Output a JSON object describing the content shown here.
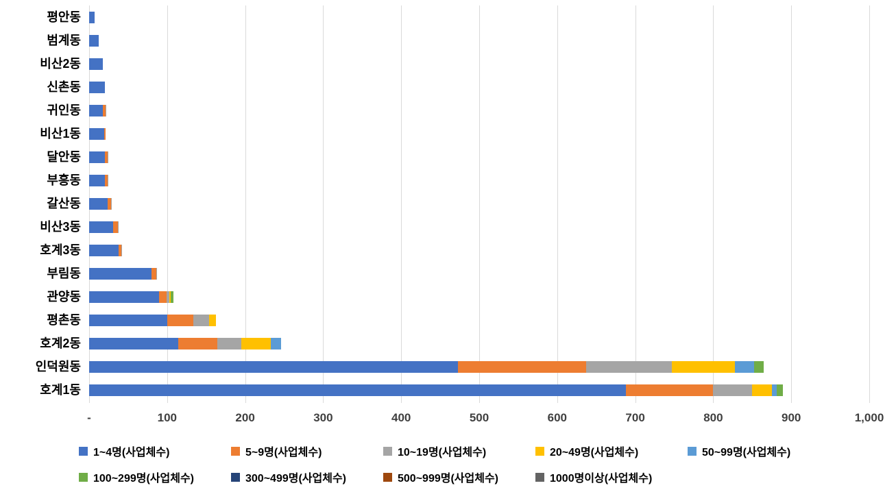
{
  "chart_data": {
    "type": "bar",
    "orientation": "horizontal",
    "stacked": true,
    "title": "",
    "xlabel": "",
    "ylabel": "",
    "xlim": [
      0,
      1000
    ],
    "grid": true,
    "legend_position": "bottom",
    "x_ticks": [
      "-",
      "100",
      "200",
      "300",
      "400",
      "500",
      "600",
      "700",
      "800",
      "900",
      "1,000"
    ],
    "categories": [
      "평안동",
      "범계동",
      "비산2동",
      "신촌동",
      "귀인동",
      "비산1동",
      "달안동",
      "부흥동",
      "갈산동",
      "비산3동",
      "호계3동",
      "부림동",
      "관양동",
      "평촌동",
      "호계2동",
      "인덕원동",
      "호계1동"
    ],
    "series": [
      {
        "name": "1~4명(사업체수)",
        "color": "#4472C4",
        "values": [
          7,
          12,
          18,
          20,
          18,
          19,
          20,
          20,
          24,
          31,
          38,
          80,
          90,
          100,
          114,
          473,
          688
        ]
      },
      {
        "name": "5~9명(사업체수)",
        "color": "#ED7D31",
        "values": [
          0,
          0,
          0,
          0,
          3,
          2,
          4,
          4,
          4,
          6,
          3,
          6,
          9,
          34,
          50,
          164,
          112
        ]
      },
      {
        "name": "10~19명(사업체수)",
        "color": "#A5A5A5",
        "values": [
          0,
          0,
          0,
          0,
          1,
          0,
          1,
          1,
          1,
          1,
          1,
          1,
          4,
          20,
          31,
          110,
          50
        ]
      },
      {
        "name": "20~49명(사업체수)",
        "color": "#FFC000",
        "values": [
          0,
          0,
          0,
          0,
          0,
          0,
          0,
          0,
          0,
          0,
          0,
          0,
          2,
          9,
          38,
          81,
          25
        ]
      },
      {
        "name": "50~99명(사업체수)",
        "color": "#5B9BD5",
        "values": [
          0,
          0,
          0,
          0,
          0,
          0,
          0,
          0,
          0,
          0,
          0,
          0,
          0,
          0,
          13,
          24,
          6
        ]
      },
      {
        "name": "100~299명(사업체수)",
        "color": "#70AD47",
        "values": [
          0,
          0,
          0,
          0,
          0,
          0,
          0,
          0,
          0,
          0,
          0,
          0,
          3,
          0,
          0,
          13,
          8
        ]
      },
      {
        "name": "300~499명(사업체수)",
        "color": "#264478",
        "values": [
          0,
          0,
          0,
          0,
          0,
          0,
          0,
          0,
          0,
          0,
          0,
          0,
          0,
          0,
          0,
          0,
          0
        ]
      },
      {
        "name": "500~999명(사업체수)",
        "color": "#9E480E",
        "values": [
          0,
          0,
          0,
          0,
          0,
          0,
          0,
          0,
          0,
          0,
          0,
          0,
          0,
          0,
          0,
          0,
          0
        ]
      },
      {
        "name": "1000명이상(사업체수)",
        "color": "#636363",
        "values": [
          0,
          0,
          0,
          0,
          0,
          0,
          0,
          0,
          0,
          0,
          0,
          0,
          0,
          0,
          0,
          0,
          0
        ]
      }
    ]
  }
}
